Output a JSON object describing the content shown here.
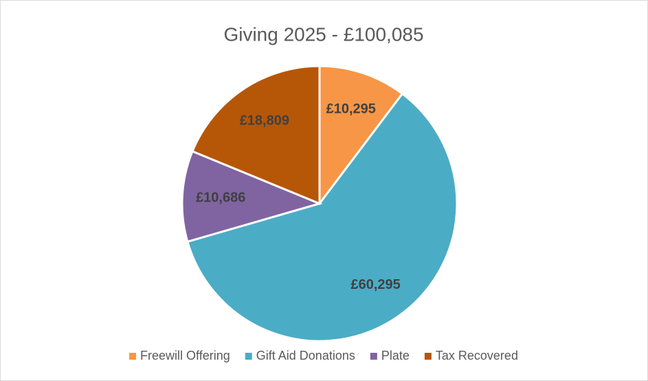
{
  "chart_data": {
    "type": "pie",
    "title": "Giving 2025 - £100,085",
    "categories": [
      "Freewill Offering",
      "Gift Aid Donations",
      "Plate",
      "Tax Recovered"
    ],
    "values": [
      10295,
      60295,
      10686,
      18809
    ],
    "value_labels": [
      "£10,295",
      "£60,295",
      "£10,686",
      "£18,809"
    ],
    "colors": [
      "#F79646",
      "#4BACC6",
      "#8064A2",
      "#B65708"
    ],
    "legend": "bottom"
  }
}
